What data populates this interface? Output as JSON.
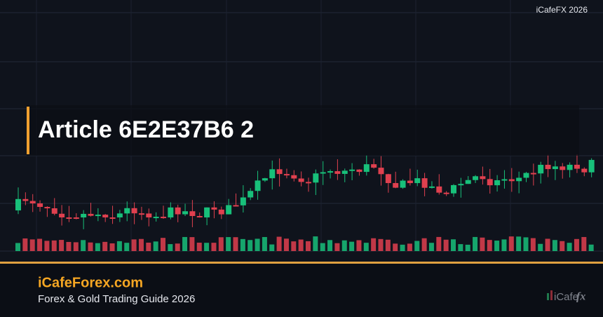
{
  "header": {
    "brand": "iCafeFX 2026"
  },
  "article": {
    "title": "Article 6E2E37B6 2"
  },
  "footer": {
    "site": "iCafeForex.com",
    "tagline": "Forex & Gold Trading Guide 2026"
  },
  "logo": {
    "word": "iCafe",
    "mark": "fx"
  }
}
